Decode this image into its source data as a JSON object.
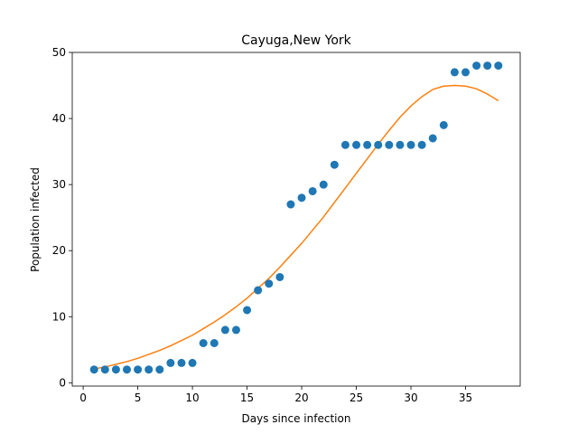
{
  "chart_data": {
    "type": "scatter",
    "title": "Cayuga,New York",
    "xlabel": "Days since infection",
    "ylabel": "Population infected",
    "xlim": [
      -1,
      40
    ],
    "ylim": [
      -0.5,
      50
    ],
    "xticks": [
      0,
      5,
      10,
      15,
      20,
      25,
      30,
      35
    ],
    "yticks": [
      0,
      10,
      20,
      30,
      40,
      50
    ],
    "grid": false,
    "legend": "none",
    "series": [
      {
        "kind": "scatter",
        "color": "#1f77b4",
        "x": [
          1,
          2,
          3,
          4,
          5,
          6,
          7,
          8,
          9,
          10,
          11,
          12,
          13,
          14,
          15,
          16,
          17,
          18,
          19,
          20,
          21,
          22,
          23,
          24,
          25,
          26,
          27,
          28,
          29,
          30,
          31,
          32,
          33,
          34,
          35,
          36,
          37,
          38
        ],
        "y": [
          2,
          2,
          2,
          2,
          2,
          2,
          2,
          3,
          3,
          3,
          6,
          6,
          8,
          8,
          11,
          14,
          15,
          16,
          27,
          28,
          29,
          30,
          33,
          36,
          36,
          36,
          36,
          36,
          36,
          36,
          36,
          37,
          39,
          47,
          47,
          48,
          48,
          48
        ]
      },
      {
        "kind": "line",
        "color": "#ff7f0e",
        "x": [
          1,
          2,
          3,
          4,
          5,
          6,
          7,
          8,
          9,
          10,
          11,
          12,
          13,
          14,
          15,
          16,
          17,
          18,
          19,
          20,
          21,
          22,
          23,
          24,
          25,
          26,
          27,
          28,
          29,
          30,
          31,
          32,
          33,
          34,
          35,
          36,
          37,
          38
        ],
        "y": [
          2.1,
          2.4,
          2.8,
          3.2,
          3.7,
          4.3,
          4.9,
          5.6,
          6.4,
          7.2,
          8.2,
          9.2,
          10.3,
          11.5,
          12.8,
          14.3,
          15.8,
          17.5,
          19.3,
          21.1,
          23.1,
          25.1,
          27.3,
          29.5,
          31.7,
          33.9,
          36.1,
          38.2,
          40.2,
          41.9,
          43.3,
          44.4,
          44.9,
          45.0,
          44.9,
          44.5,
          43.7,
          42.7
        ]
      }
    ]
  }
}
